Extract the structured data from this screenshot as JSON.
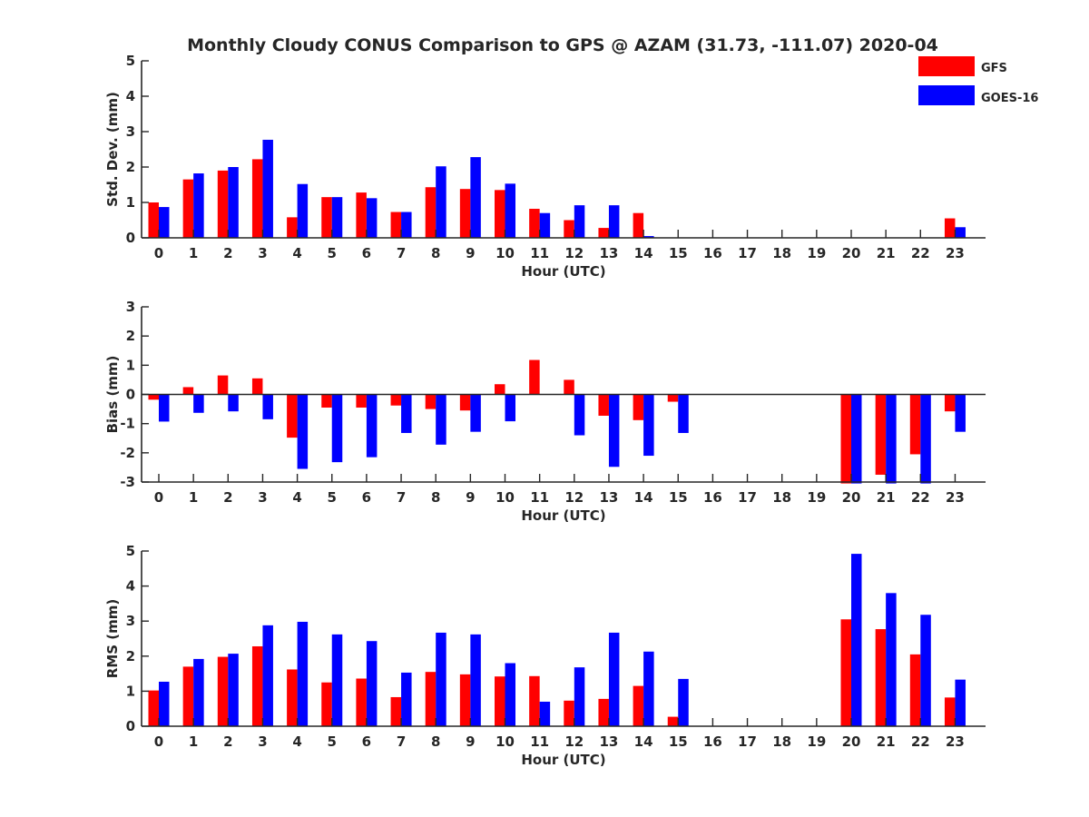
{
  "figure_title": "Monthly Cloudy CONUS Comparison to GPS @ AZAM (31.73, -111.07) 2020-04",
  "colors": {
    "GFS": "#ff0000",
    "GOES-16": "#0000ff",
    "axis": "#262626"
  },
  "legend": [
    {
      "label": "GFS",
      "color": "#ff0000"
    },
    {
      "label": "GOES-16",
      "color": "#0000ff"
    }
  ],
  "chart_data": [
    {
      "type": "bar",
      "xlabel": "Hour (UTC)",
      "ylabel": "Std. Dev. (mm)",
      "ylim": [
        0,
        5
      ],
      "yticks": [
        0,
        1,
        2,
        3,
        4,
        5
      ],
      "categories": [
        "0",
        "1",
        "2",
        "3",
        "4",
        "5",
        "6",
        "7",
        "8",
        "9",
        "10",
        "11",
        "12",
        "13",
        "14",
        "15",
        "16",
        "17",
        "18",
        "19",
        "20",
        "21",
        "22",
        "23"
      ],
      "series": [
        {
          "name": "GFS",
          "values": [
            1.0,
            1.65,
            1.9,
            2.22,
            0.58,
            1.15,
            1.28,
            0.73,
            1.43,
            1.38,
            1.35,
            0.82,
            0.5,
            0.28,
            0.7,
            0,
            0,
            0,
            0,
            0,
            0,
            0,
            0,
            0.55
          ]
        },
        {
          "name": "GOES-16",
          "values": [
            0.87,
            1.82,
            2.0,
            2.77,
            1.52,
            1.15,
            1.12,
            0.73,
            2.02,
            2.28,
            1.53,
            0.7,
            0.92,
            0.92,
            0.05,
            0,
            0,
            0,
            0,
            0,
            0,
            0,
            0,
            0.3
          ]
        }
      ]
    },
    {
      "type": "bar",
      "xlabel": "Hour (UTC)",
      "ylabel": "Bias (mm)",
      "ylim": [
        -3,
        3
      ],
      "yticks": [
        -3,
        -2,
        -1,
        0,
        1,
        2,
        3
      ],
      "categories": [
        "0",
        "1",
        "2",
        "3",
        "4",
        "5",
        "6",
        "7",
        "8",
        "9",
        "10",
        "11",
        "12",
        "13",
        "14",
        "15",
        "16",
        "17",
        "18",
        "19",
        "20",
        "21",
        "22",
        "23"
      ],
      "series": [
        {
          "name": "GFS",
          "values": [
            -0.18,
            0.25,
            0.65,
            0.55,
            -1.48,
            -0.45,
            -0.45,
            -0.38,
            -0.5,
            -0.55,
            0.35,
            1.18,
            0.5,
            -0.73,
            -0.88,
            -0.25,
            0,
            0,
            0,
            0,
            -3.05,
            -2.75,
            -2.05,
            -0.58
          ]
        },
        {
          "name": "GOES-16",
          "values": [
            -0.93,
            -0.63,
            -0.58,
            -0.85,
            -2.55,
            -2.32,
            -2.15,
            -1.32,
            -1.72,
            -1.28,
            -0.92,
            0,
            -1.4,
            -2.48,
            -2.1,
            -1.32,
            0,
            0,
            0,
            0,
            -3.05,
            -3.05,
            -3.05,
            -1.28
          ]
        }
      ]
    },
    {
      "type": "bar",
      "xlabel": "Hour (UTC)",
      "ylabel": "RMS (mm)",
      "ylim": [
        0,
        5
      ],
      "yticks": [
        0,
        1,
        2,
        3,
        4,
        5
      ],
      "categories": [
        "0",
        "1",
        "2",
        "3",
        "4",
        "5",
        "6",
        "7",
        "8",
        "9",
        "10",
        "11",
        "12",
        "13",
        "14",
        "15",
        "16",
        "17",
        "18",
        "19",
        "20",
        "21",
        "22",
        "23"
      ],
      "series": [
        {
          "name": "GFS",
          "values": [
            1.02,
            1.7,
            1.98,
            2.28,
            1.62,
            1.25,
            1.36,
            0.83,
            1.55,
            1.48,
            1.42,
            1.43,
            0.73,
            0.78,
            1.15,
            0.27,
            0,
            0,
            0,
            0,
            3.05,
            2.77,
            2.05,
            0.82
          ]
        },
        {
          "name": "GOES-16",
          "values": [
            1.27,
            1.92,
            2.07,
            2.88,
            2.98,
            2.62,
            2.43,
            1.53,
            2.67,
            2.62,
            1.8,
            0.7,
            1.68,
            2.67,
            2.13,
            1.35,
            0,
            0,
            0,
            0,
            4.92,
            3.8,
            3.18,
            1.33
          ]
        }
      ]
    }
  ]
}
